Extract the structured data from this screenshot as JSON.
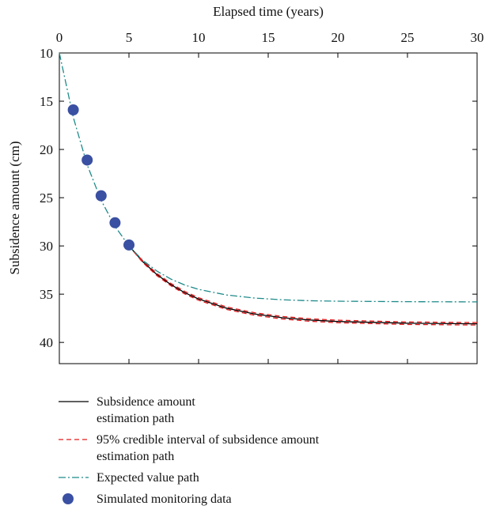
{
  "chart_data": {
    "type": "line",
    "x_label": "Elapsed time (years)",
    "y_label": "Subsidence amount (cm)",
    "xlim": [
      0,
      30
    ],
    "xticks": [
      0,
      5,
      10,
      15,
      20,
      25,
      30
    ],
    "ylim": [
      10,
      42.2
    ],
    "yticks": [
      10,
      15,
      20,
      25,
      30,
      35,
      40
    ],
    "y_inverted": true,
    "x_axis_position": "top",
    "series": [
      {
        "name": "Subsidence amount estimation path",
        "color": "#000000",
        "style": "solid",
        "x": [
          5,
          6,
          7,
          8,
          9,
          10,
          12,
          14,
          16,
          18,
          20,
          25,
          30
        ],
        "values": [
          30,
          31.64,
          32.96,
          34.0,
          34.84,
          35.5,
          36.45,
          37.05,
          37.44,
          37.68,
          37.83,
          38.01,
          38.07
        ]
      },
      {
        "name": "95% credible interval of  subsidence amount estimation path",
        "color": "#e41a1c",
        "style": "dashed",
        "x": [
          5,
          6,
          7,
          8,
          9,
          10,
          12,
          14,
          16,
          18,
          20,
          25,
          30
        ],
        "lower": [
          30,
          31.55,
          32.85,
          33.88,
          34.71,
          35.37,
          36.32,
          36.92,
          37.31,
          37.55,
          37.7,
          37.88,
          37.94
        ],
        "upper": [
          30,
          31.73,
          33.07,
          34.12,
          34.97,
          35.63,
          36.58,
          37.18,
          37.57,
          37.81,
          37.96,
          38.14,
          38.2
        ]
      },
      {
        "name": "Expected value path",
        "color": "#1f8a8a",
        "style": "dashdot",
        "x": [
          0,
          1,
          2,
          3,
          4,
          5,
          6,
          7,
          8,
          9,
          10,
          12,
          14,
          16,
          18,
          20,
          25,
          30
        ],
        "values": [
          10,
          16.66,
          21.6,
          25.27,
          27.98,
          30.0,
          31.5,
          32.6,
          33.43,
          34.05,
          34.5,
          35.08,
          35.4,
          35.58,
          35.68,
          35.73,
          35.78,
          35.8
        ]
      },
      {
        "name": "Simulated monitoring data",
        "color": "#3a50a2",
        "style": "marker",
        "x": [
          1,
          2,
          3,
          4,
          5
        ],
        "values": [
          15.9,
          21.1,
          24.8,
          27.6,
          29.9
        ]
      }
    ]
  }
}
